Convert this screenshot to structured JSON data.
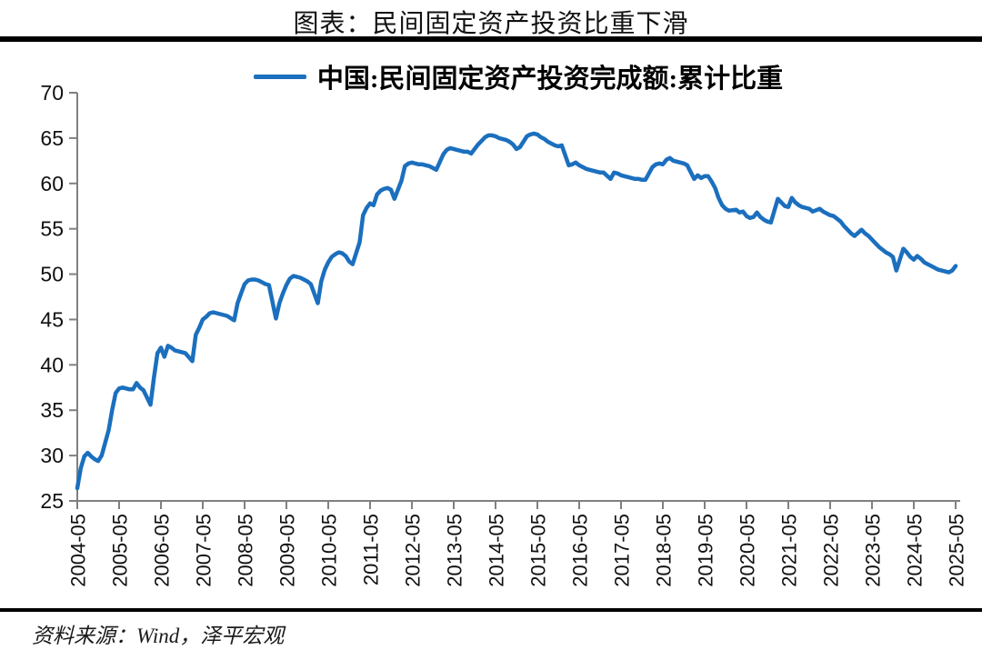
{
  "title": "图表：民间固定资产投资比重下滑",
  "legend": {
    "label": "中国:民间固定资产投资完成额:累计比重"
  },
  "source": "资料来源：Wind，泽平宏观",
  "colors": {
    "line": "#1B6FBE",
    "axis": "#808080",
    "tick_label": "#111111",
    "rule": "#000000"
  },
  "chart_data": {
    "type": "line",
    "title": "图表：民间固定资产投资比重下滑",
    "xlabel": "",
    "ylabel": "",
    "ylim": [
      25,
      70
    ],
    "yticks": [
      25,
      30,
      35,
      40,
      45,
      50,
      55,
      60,
      65,
      70
    ],
    "xticks": [
      "2004-05",
      "2005-05",
      "2006-05",
      "2007-05",
      "2008-05",
      "2009-05",
      "2010-05",
      "2011-05",
      "2012-05",
      "2013-05",
      "2014-05",
      "2015-05",
      "2016-05",
      "2017-05",
      "2018-05",
      "2019-05",
      "2020-05",
      "2021-05",
      "2022-05",
      "2023-05",
      "2024-05",
      "2025-05"
    ],
    "x_range": [
      "2004-05",
      "2025-05"
    ],
    "grid": false,
    "legend_position": "top-center",
    "series": [
      {
        "name": "中国:民间固定资产投资完成额:累计比重",
        "color": "#1B6FBE",
        "points": [
          [
            "2004-05",
            26.4
          ],
          [
            "2004-06",
            28.6
          ],
          [
            "2004-07",
            29.9
          ],
          [
            "2004-08",
            30.3
          ],
          [
            "2004-09",
            29.9
          ],
          [
            "2004-10",
            29.6
          ],
          [
            "2004-11",
            29.4
          ],
          [
            "2004-12",
            30.0
          ],
          [
            "2005-02",
            32.8
          ],
          [
            "2005-03",
            35.0
          ],
          [
            "2005-04",
            36.9
          ],
          [
            "2005-05",
            37.4
          ],
          [
            "2005-06",
            37.5
          ],
          [
            "2005-07",
            37.4
          ],
          [
            "2005-08",
            37.3
          ],
          [
            "2005-09",
            37.3
          ],
          [
            "2005-10",
            38.0
          ],
          [
            "2005-11",
            37.5
          ],
          [
            "2005-12",
            37.2
          ],
          [
            "2006-02",
            35.6
          ],
          [
            "2006-03",
            38.6
          ],
          [
            "2006-04",
            41.3
          ],
          [
            "2006-05",
            41.9
          ],
          [
            "2006-06",
            40.9
          ],
          [
            "2006-07",
            42.1
          ],
          [
            "2006-08",
            41.9
          ],
          [
            "2006-09",
            41.6
          ],
          [
            "2006-10",
            41.5
          ],
          [
            "2006-11",
            41.4
          ],
          [
            "2006-12",
            41.3
          ],
          [
            "2007-02",
            40.4
          ],
          [
            "2007-03",
            43.3
          ],
          [
            "2007-04",
            44.1
          ],
          [
            "2007-05",
            45.0
          ],
          [
            "2007-06",
            45.3
          ],
          [
            "2007-07",
            45.7
          ],
          [
            "2007-08",
            45.8
          ],
          [
            "2007-09",
            45.7
          ],
          [
            "2007-10",
            45.6
          ],
          [
            "2007-11",
            45.5
          ],
          [
            "2007-12",
            45.4
          ],
          [
            "2008-02",
            44.9
          ],
          [
            "2008-03",
            46.8
          ],
          [
            "2008-04",
            47.9
          ],
          [
            "2008-05",
            48.9
          ],
          [
            "2008-06",
            49.3
          ],
          [
            "2008-07",
            49.4
          ],
          [
            "2008-08",
            49.4
          ],
          [
            "2008-09",
            49.3
          ],
          [
            "2008-10",
            49.1
          ],
          [
            "2008-11",
            48.9
          ],
          [
            "2008-12",
            48.8
          ],
          [
            "2009-02",
            45.1
          ],
          [
            "2009-03",
            46.8
          ],
          [
            "2009-04",
            47.9
          ],
          [
            "2009-05",
            48.8
          ],
          [
            "2009-06",
            49.5
          ],
          [
            "2009-07",
            49.8
          ],
          [
            "2009-08",
            49.7
          ],
          [
            "2009-09",
            49.6
          ],
          [
            "2009-10",
            49.4
          ],
          [
            "2009-11",
            49.2
          ],
          [
            "2009-12",
            48.9
          ],
          [
            "2010-02",
            46.8
          ],
          [
            "2010-03",
            49.2
          ],
          [
            "2010-04",
            50.5
          ],
          [
            "2010-05",
            51.3
          ],
          [
            "2010-06",
            51.9
          ],
          [
            "2010-07",
            52.2
          ],
          [
            "2010-08",
            52.4
          ],
          [
            "2010-09",
            52.3
          ],
          [
            "2010-10",
            52.0
          ],
          [
            "2010-11",
            51.4
          ],
          [
            "2010-12",
            51.1
          ],
          [
            "2011-02",
            53.5
          ],
          [
            "2011-03",
            56.5
          ],
          [
            "2011-04",
            57.3
          ],
          [
            "2011-05",
            57.8
          ],
          [
            "2011-06",
            57.6
          ],
          [
            "2011-07",
            58.8
          ],
          [
            "2011-08",
            59.2
          ],
          [
            "2011-09",
            59.4
          ],
          [
            "2011-10",
            59.5
          ],
          [
            "2011-11",
            59.3
          ],
          [
            "2011-12",
            58.3
          ],
          [
            "2012-02",
            60.3
          ],
          [
            "2012-03",
            61.9
          ],
          [
            "2012-04",
            62.2
          ],
          [
            "2012-05",
            62.3
          ],
          [
            "2012-06",
            62.2
          ],
          [
            "2012-07",
            62.1
          ],
          [
            "2012-08",
            62.1
          ],
          [
            "2012-09",
            62.0
          ],
          [
            "2012-10",
            61.9
          ],
          [
            "2012-11",
            61.7
          ],
          [
            "2012-12",
            61.5
          ],
          [
            "2013-02",
            63.2
          ],
          [
            "2013-03",
            63.7
          ],
          [
            "2013-04",
            63.9
          ],
          [
            "2013-05",
            63.8
          ],
          [
            "2013-06",
            63.7
          ],
          [
            "2013-07",
            63.6
          ],
          [
            "2013-08",
            63.5
          ],
          [
            "2013-09",
            63.5
          ],
          [
            "2013-10",
            63.3
          ],
          [
            "2013-11",
            63.8
          ],
          [
            "2013-12",
            64.3
          ],
          [
            "2014-02",
            65.1
          ],
          [
            "2014-03",
            65.3
          ],
          [
            "2014-04",
            65.3
          ],
          [
            "2014-05",
            65.2
          ],
          [
            "2014-06",
            65.0
          ],
          [
            "2014-07",
            64.9
          ],
          [
            "2014-08",
            64.8
          ],
          [
            "2014-09",
            64.6
          ],
          [
            "2014-10",
            64.3
          ],
          [
            "2014-11",
            63.8
          ],
          [
            "2014-12",
            64.0
          ],
          [
            "2015-02",
            65.2
          ],
          [
            "2015-03",
            65.4
          ],
          [
            "2015-04",
            65.5
          ],
          [
            "2015-05",
            65.4
          ],
          [
            "2015-06",
            65.1
          ],
          [
            "2015-07",
            64.9
          ],
          [
            "2015-08",
            64.6
          ],
          [
            "2015-09",
            64.4
          ],
          [
            "2015-10",
            64.2
          ],
          [
            "2015-11",
            64.1
          ],
          [
            "2015-12",
            64.2
          ],
          [
            "2016-02",
            62.0
          ],
          [
            "2016-03",
            62.1
          ],
          [
            "2016-04",
            62.3
          ],
          [
            "2016-05",
            62.0
          ],
          [
            "2016-06",
            61.8
          ],
          [
            "2016-07",
            61.6
          ],
          [
            "2016-08",
            61.5
          ],
          [
            "2016-09",
            61.4
          ],
          [
            "2016-10",
            61.3
          ],
          [
            "2016-11",
            61.2
          ],
          [
            "2016-12",
            61.2
          ],
          [
            "2017-02",
            60.5
          ],
          [
            "2017-03",
            61.2
          ],
          [
            "2017-04",
            61.1
          ],
          [
            "2017-05",
            60.9
          ],
          [
            "2017-06",
            60.8
          ],
          [
            "2017-07",
            60.7
          ],
          [
            "2017-08",
            60.6
          ],
          [
            "2017-09",
            60.5
          ],
          [
            "2017-10",
            60.5
          ],
          [
            "2017-11",
            60.4
          ],
          [
            "2017-12",
            60.4
          ],
          [
            "2018-02",
            61.8
          ],
          [
            "2018-03",
            62.1
          ],
          [
            "2018-04",
            62.2
          ],
          [
            "2018-05",
            62.1
          ],
          [
            "2018-06",
            62.6
          ],
          [
            "2018-07",
            62.8
          ],
          [
            "2018-08",
            62.5
          ],
          [
            "2018-09",
            62.4
          ],
          [
            "2018-10",
            62.3
          ],
          [
            "2018-11",
            62.2
          ],
          [
            "2018-12",
            62.0
          ],
          [
            "2019-02",
            60.5
          ],
          [
            "2019-03",
            60.9
          ],
          [
            "2019-04",
            60.6
          ],
          [
            "2019-05",
            60.8
          ],
          [
            "2019-06",
            60.8
          ],
          [
            "2019-07",
            60.2
          ],
          [
            "2019-08",
            59.5
          ],
          [
            "2019-09",
            58.4
          ],
          [
            "2019-10",
            57.6
          ],
          [
            "2019-11",
            57.2
          ],
          [
            "2019-12",
            57.0
          ],
          [
            "2020-02",
            57.1
          ],
          [
            "2020-03",
            56.8
          ],
          [
            "2020-04",
            56.9
          ],
          [
            "2020-05",
            56.4
          ],
          [
            "2020-06",
            56.2
          ],
          [
            "2020-07",
            56.3
          ],
          [
            "2020-08",
            56.8
          ],
          [
            "2020-09",
            56.3
          ],
          [
            "2020-10",
            56.0
          ],
          [
            "2020-11",
            55.8
          ],
          [
            "2020-12",
            55.7
          ],
          [
            "2021-02",
            58.3
          ],
          [
            "2021-03",
            57.9
          ],
          [
            "2021-04",
            57.5
          ],
          [
            "2021-05",
            57.4
          ],
          [
            "2021-06",
            58.4
          ],
          [
            "2021-07",
            57.9
          ],
          [
            "2021-08",
            57.6
          ],
          [
            "2021-09",
            57.4
          ],
          [
            "2021-10",
            57.3
          ],
          [
            "2021-11",
            57.2
          ],
          [
            "2021-12",
            56.9
          ],
          [
            "2022-02",
            57.2
          ],
          [
            "2022-03",
            56.9
          ],
          [
            "2022-04",
            56.7
          ],
          [
            "2022-05",
            56.5
          ],
          [
            "2022-06",
            56.4
          ],
          [
            "2022-07",
            56.1
          ],
          [
            "2022-08",
            55.8
          ],
          [
            "2022-09",
            55.3
          ],
          [
            "2022-10",
            54.9
          ],
          [
            "2022-11",
            54.5
          ],
          [
            "2022-12",
            54.2
          ],
          [
            "2023-02",
            54.9
          ],
          [
            "2023-03",
            54.5
          ],
          [
            "2023-04",
            54.2
          ],
          [
            "2023-05",
            53.8
          ],
          [
            "2023-06",
            53.4
          ],
          [
            "2023-07",
            53.0
          ],
          [
            "2023-08",
            52.7
          ],
          [
            "2023-09",
            52.4
          ],
          [
            "2023-10",
            52.2
          ],
          [
            "2023-11",
            51.9
          ],
          [
            "2023-12",
            50.4
          ],
          [
            "2024-02",
            52.8
          ],
          [
            "2024-03",
            52.4
          ],
          [
            "2024-04",
            51.9
          ],
          [
            "2024-05",
            51.6
          ],
          [
            "2024-06",
            52.0
          ],
          [
            "2024-07",
            51.7
          ],
          [
            "2024-08",
            51.3
          ],
          [
            "2024-09",
            51.1
          ],
          [
            "2024-10",
            50.9
          ],
          [
            "2024-11",
            50.7
          ],
          [
            "2024-12",
            50.5
          ],
          [
            "2025-02",
            50.3
          ],
          [
            "2025-03",
            50.2
          ],
          [
            "2025-04",
            50.4
          ],
          [
            "2025-05",
            50.9
          ]
        ]
      }
    ]
  }
}
